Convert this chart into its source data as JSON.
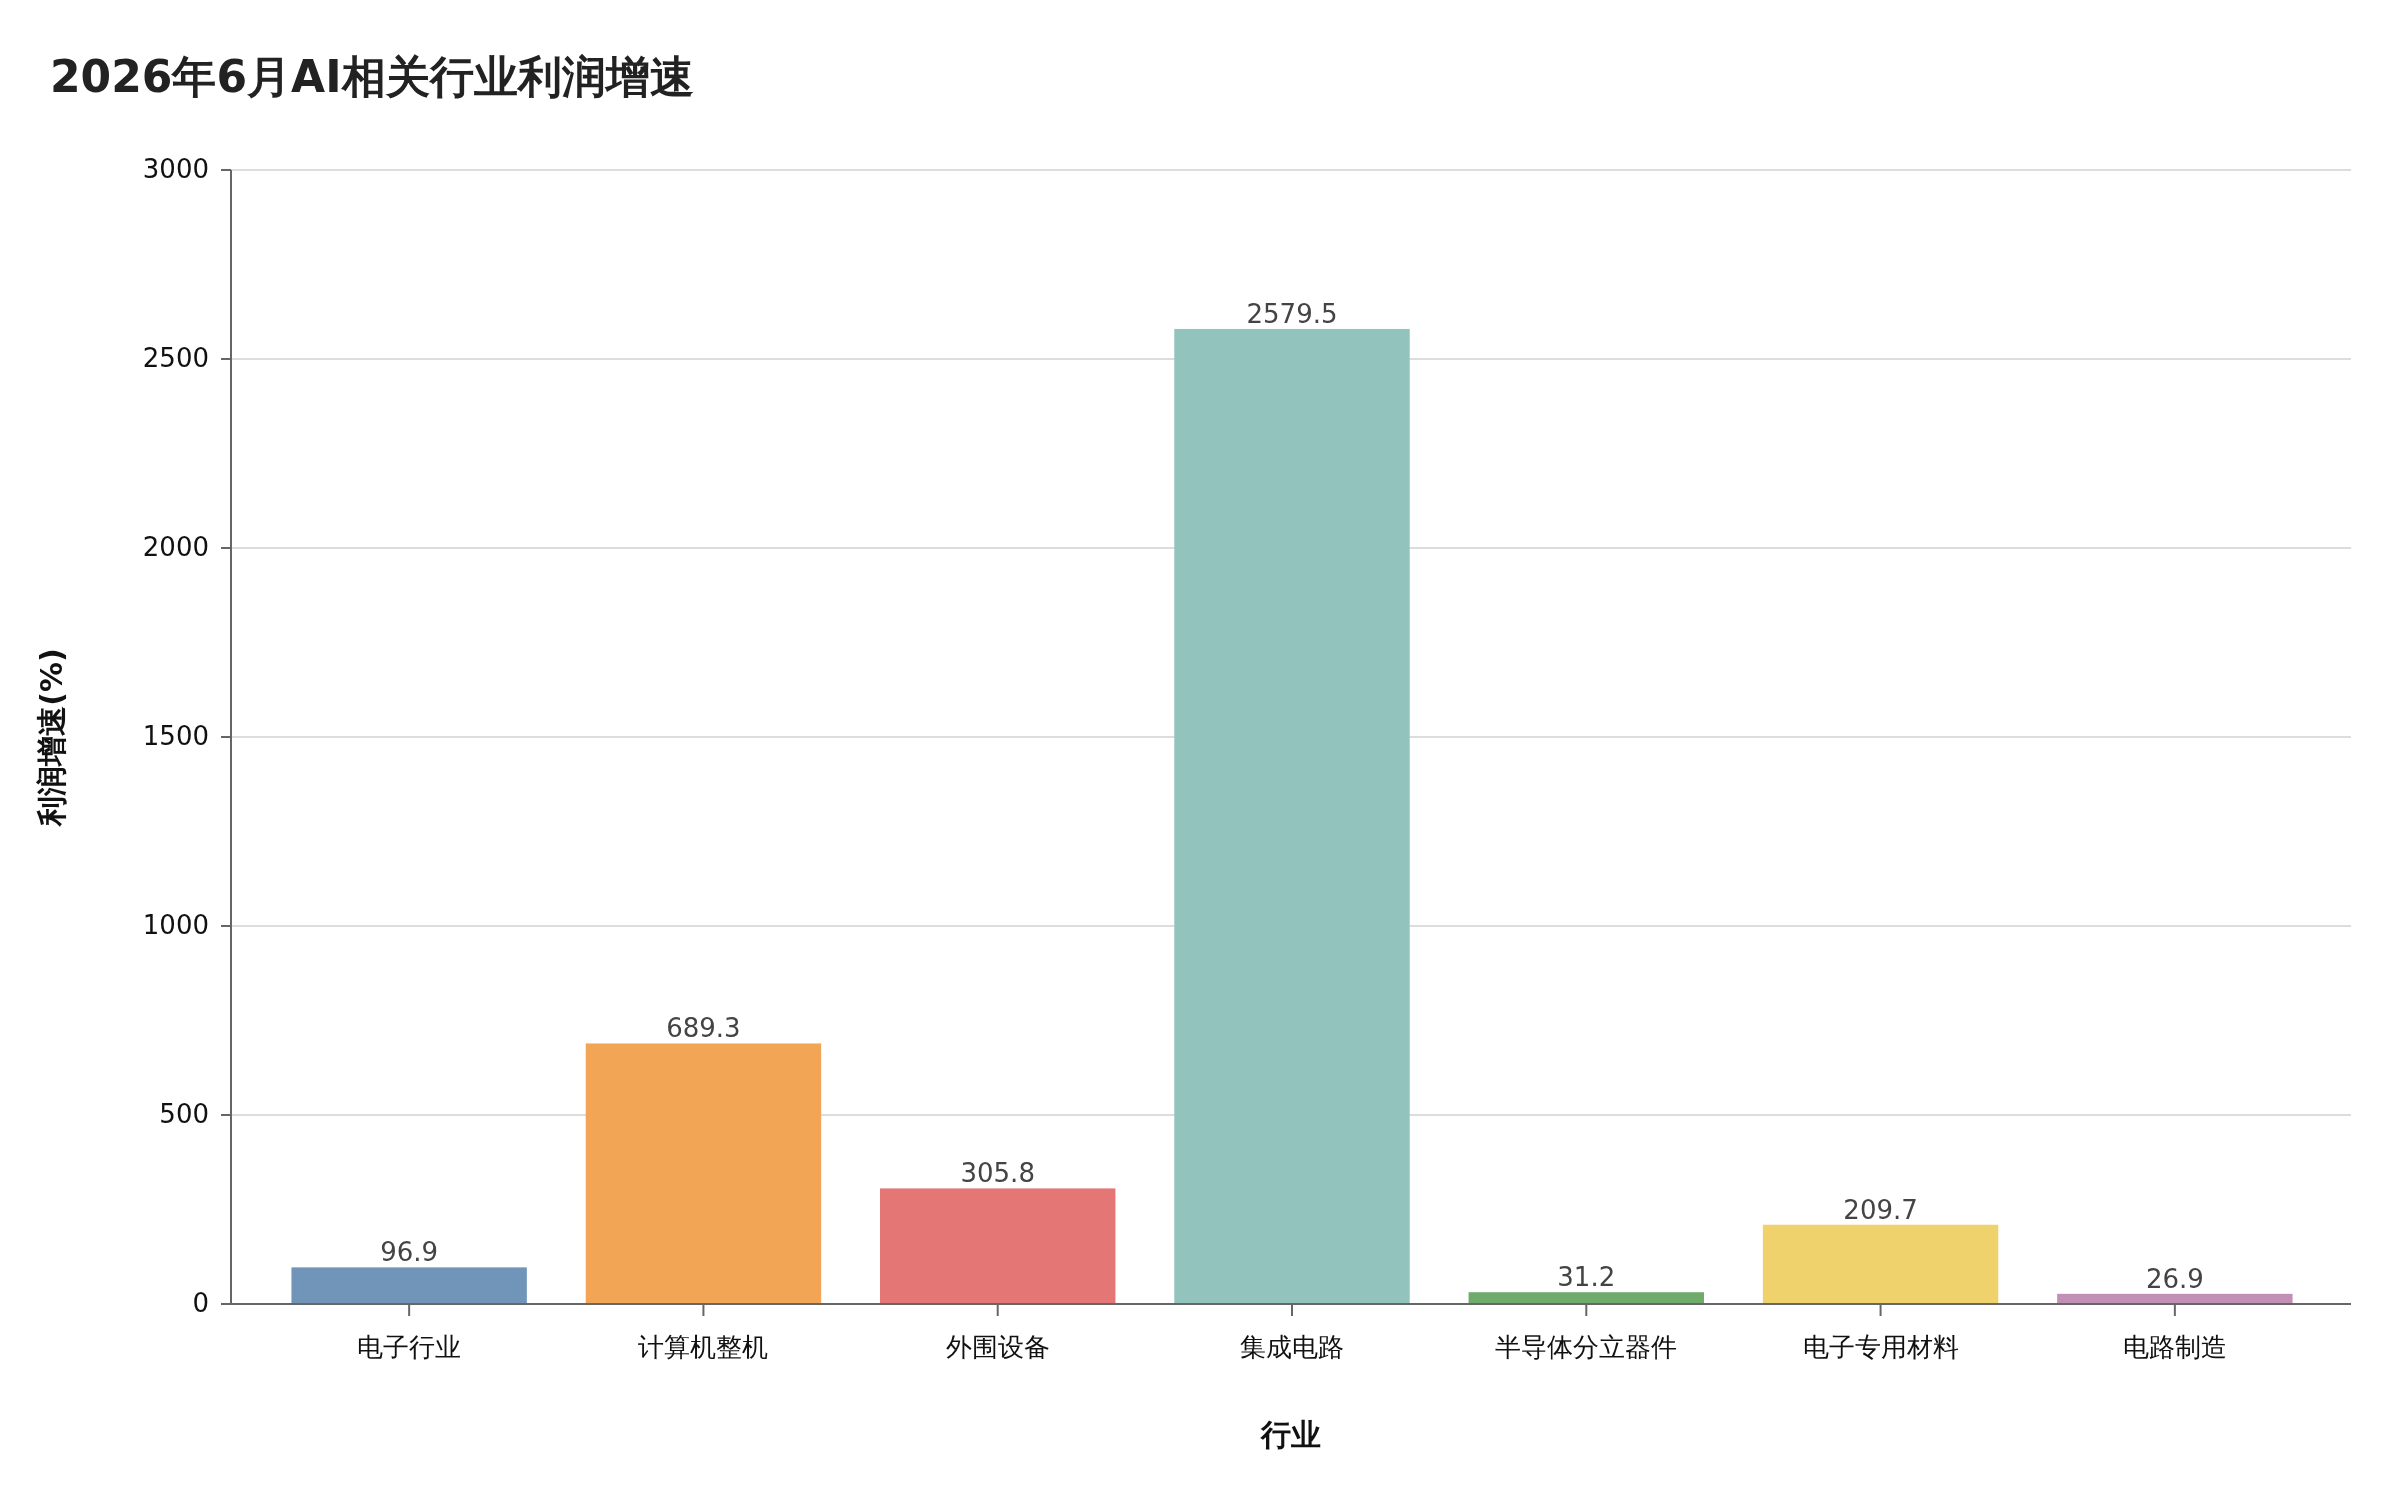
{
  "chart_data": {
    "type": "bar",
    "title": "2026年6月AI相关行业利润增速",
    "xlabel": "行业",
    "ylabel": "利润增速(%)",
    "categories": [
      "电子行业",
      "计算机整机",
      "外围设备",
      "集成电路",
      "半导体分立器件",
      "电子专用材料",
      "电路制造"
    ],
    "values": [
      96.9,
      689.3,
      305.8,
      2579.5,
      31.2,
      209.7,
      26.9
    ],
    "colors": [
      "#7195b9",
      "#f2a554",
      "#e57676",
      "#92c3bd",
      "#6fab6b",
      "#f0d26c",
      "#c290b5"
    ],
    "ylim": [
      0,
      3000
    ],
    "yticks": [
      0,
      500,
      1000,
      1500,
      2000,
      2500,
      3000
    ],
    "grid": "y",
    "data_labels": true
  }
}
